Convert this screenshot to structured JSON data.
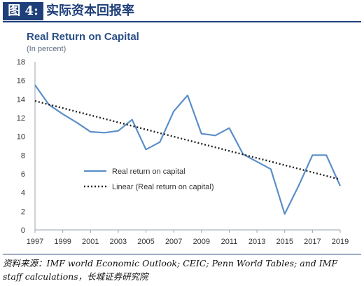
{
  "figure": {
    "label": "图 4:",
    "title": "实际资本回报率"
  },
  "source": {
    "line1": "资料来源：IMF world Economic Outlook; CEIC; Penn World Tables; and IMF",
    "line2": "staff calculations，长城证券研究院"
  },
  "chart_data": {
    "type": "line",
    "title": "Real Return on Capital",
    "subtitle": "(In percent)",
    "xlabel": "",
    "ylabel": "",
    "ylim": [
      0,
      18
    ],
    "yticks": [
      0,
      2,
      4,
      6,
      8,
      10,
      12,
      14,
      16,
      18
    ],
    "xlim": [
      1997,
      2019
    ],
    "xticks": [
      1997,
      1999,
      2001,
      2003,
      2005,
      2007,
      2009,
      2011,
      2013,
      2015,
      2017,
      2019
    ],
    "grid": false,
    "legend_position": "lower-left",
    "series": [
      {
        "name": "Real return on capital",
        "style": "solid",
        "color": "#5b8fc7",
        "x": [
          1997,
          1998,
          1999,
          2000,
          2001,
          2002,
          2003,
          2004,
          2005,
          2006,
          2007,
          2008,
          2009,
          2010,
          2011,
          2012,
          2013,
          2014,
          2015,
          2016,
          2017,
          2018,
          2019
        ],
        "values": [
          15.5,
          13.4,
          12.4,
          11.5,
          10.5,
          10.4,
          10.6,
          11.8,
          8.6,
          9.4,
          12.7,
          14.4,
          10.3,
          10.1,
          10.9,
          8.1,
          7.3,
          6.5,
          1.7,
          4.7,
          8.0,
          8.0,
          4.7
        ]
      },
      {
        "name": "Linear (Real return on capital)",
        "style": "dotted",
        "color": "#222222",
        "x": [
          1997,
          2019
        ],
        "values": [
          13.8,
          5.4
        ]
      }
    ]
  }
}
